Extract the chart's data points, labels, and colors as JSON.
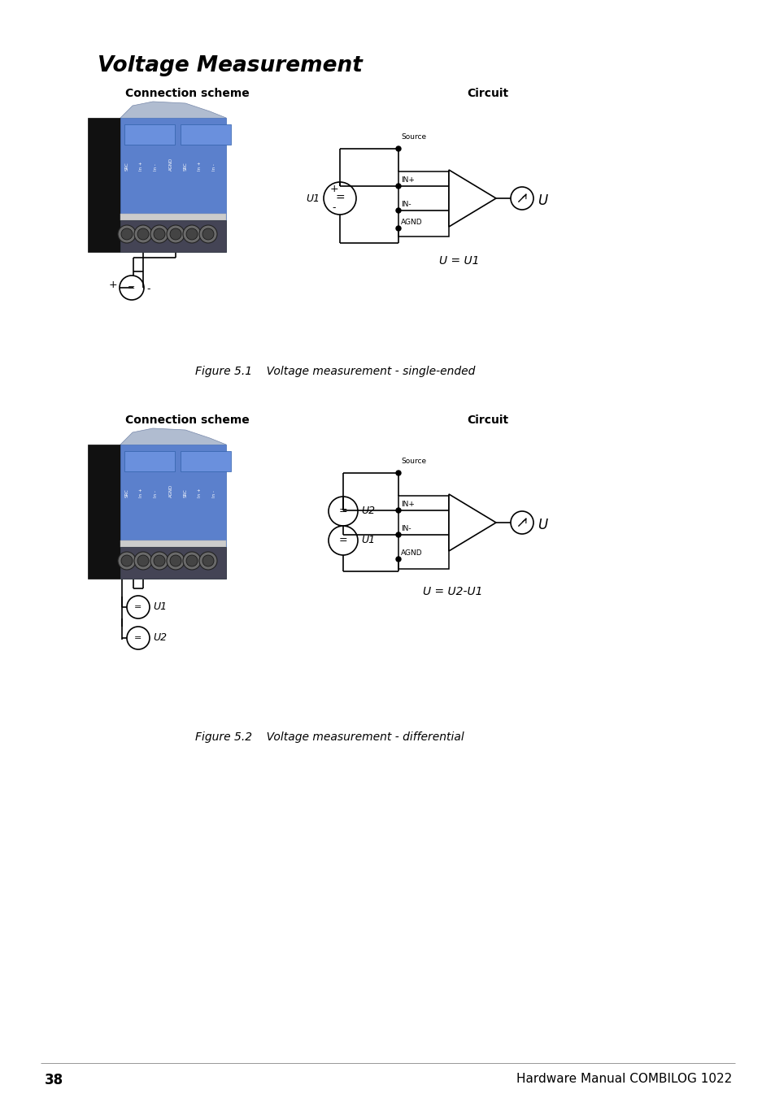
{
  "title": "Voltage Measurement",
  "bg_color": "#ffffff",
  "page_number": "38",
  "footer_text": "Hardware Manual COMBILOG 1022",
  "fig1_caption": "Figure 5.1    Voltage measurement - single-ended",
  "fig2_caption": "Figure 5.2    Voltage measurement - differential",
  "conn_scheme_label": "Connection scheme",
  "circuit_label": "Circuit",
  "u_eq1": "U = U1",
  "u_eq2": "U = U2-U1",
  "source_label": "Source",
  "in_plus": "IN+",
  "in_minus": "IN-",
  "agnd_label": "AGND"
}
